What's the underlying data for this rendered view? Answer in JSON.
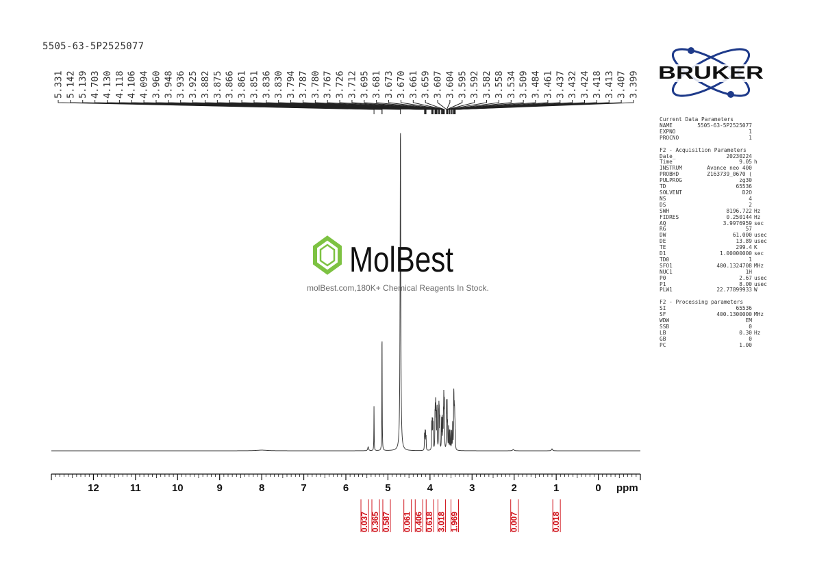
{
  "sample_name": "5505-63-5P2525077",
  "brand": "BRUKER",
  "watermark": {
    "brand": "MolBest",
    "tagline": "molBest.com,180K+ Chemical Reagents In Stock.",
    "brand_color": "#7dc242"
  },
  "colors": {
    "spectrum": "#333333",
    "integral": "#d0141c",
    "bruker_blue": "#1e3a8a"
  },
  "parameters": {
    "sections": [
      {
        "title": "Current Data Parameters",
        "rows": [
          {
            "k": "NAME",
            "v": "5505-63-5P2525077",
            "u": ""
          },
          {
            "k": "EXPNO",
            "v": "1",
            "u": ""
          },
          {
            "k": "PROCNO",
            "v": "1",
            "u": ""
          }
        ]
      },
      {
        "title": "F2 - Acquisition Parameters",
        "rows": [
          {
            "k": "Date_",
            "v": "20230224",
            "u": ""
          },
          {
            "k": "Time",
            "v": "9.05",
            "u": "h"
          },
          {
            "k": "INSTRUM",
            "v": "Avance neo 400",
            "u": ""
          },
          {
            "k": "PROBHD",
            "v": "Z163739_0670 (",
            "u": ""
          },
          {
            "k": "PULPROG",
            "v": "zg30",
            "u": ""
          },
          {
            "k": "TD",
            "v": "65536",
            "u": ""
          },
          {
            "k": "SOLVENT",
            "v": "D2O",
            "u": ""
          },
          {
            "k": "NS",
            "v": "4",
            "u": ""
          },
          {
            "k": "DS",
            "v": "2",
            "u": ""
          },
          {
            "k": "SWH",
            "v": "8196.722",
            "u": "Hz"
          },
          {
            "k": "FIDRES",
            "v": "0.250144",
            "u": "Hz"
          },
          {
            "k": "AQ",
            "v": "3.9976959",
            "u": "sec"
          },
          {
            "k": "RG",
            "v": "57",
            "u": ""
          },
          {
            "k": "DW",
            "v": "61.000",
            "u": "usec"
          },
          {
            "k": "DE",
            "v": "13.89",
            "u": "usec"
          },
          {
            "k": "TE",
            "v": "299.4",
            "u": "K"
          },
          {
            "k": "D1",
            "v": "1.00000000",
            "u": "sec"
          },
          {
            "k": "TD0",
            "v": "1",
            "u": ""
          },
          {
            "k": "SFO1",
            "v": "400.1324708",
            "u": "MHz"
          },
          {
            "k": "NUC1",
            "v": "1H",
            "u": ""
          },
          {
            "k": "P0",
            "v": "2.67",
            "u": "usec"
          },
          {
            "k": "P1",
            "v": "8.00",
            "u": "usec"
          },
          {
            "k": "PLW1",
            "v": "22.77899933",
            "u": "W"
          }
        ]
      },
      {
        "title": "F2 - Processing parameters",
        "rows": [
          {
            "k": "SI",
            "v": "65536",
            "u": ""
          },
          {
            "k": "SF",
            "v": "400.1300000",
            "u": "MHz"
          },
          {
            "k": "WDW",
            "v": "EM",
            "u": ""
          },
          {
            "k": "SSB",
            "v": "0",
            "u": ""
          },
          {
            "k": "LB",
            "v": "0.30",
            "u": "Hz"
          },
          {
            "k": "GB",
            "v": "0",
            "u": ""
          },
          {
            "k": "PC",
            "v": "1.00",
            "u": ""
          }
        ]
      }
    ]
  },
  "chart_data": {
    "type": "line",
    "title": "",
    "xlabel": "ppm",
    "ylabel": "",
    "xlim": [
      13.0,
      -1.0
    ],
    "x_reversed": true,
    "major_ticks": [
      "12",
      "11",
      "10",
      "9",
      "8",
      "7",
      "6",
      "5",
      "4",
      "3",
      "2",
      "1",
      "0"
    ],
    "grid": false,
    "peak_labels": [
      "5.331",
      "5.142",
      "5.139",
      "4.703",
      "4.130",
      "4.118",
      "4.106",
      "4.094",
      "3.960",
      "3.948",
      "3.936",
      "3.925",
      "3.882",
      "3.875",
      "3.866",
      "3.861",
      "3.851",
      "3.836",
      "3.830",
      "3.794",
      "3.787",
      "3.780",
      "3.767",
      "3.726",
      "3.712",
      "3.695",
      "3.681",
      "3.673",
      "3.670",
      "3.661",
      "3.659",
      "3.607",
      "3.604",
      "3.595",
      "3.592",
      "3.582",
      "3.558",
      "3.534",
      "3.509",
      "3.484",
      "3.461",
      "3.437",
      "3.432",
      "3.424",
      "3.418",
      "3.413",
      "3.407",
      "3.399"
    ],
    "peaks": [
      {
        "ppm": 5.47,
        "h": 0.012,
        "w": 0.012
      },
      {
        "ppm": 5.331,
        "h": 0.135,
        "w": 0.004
      },
      {
        "ppm": 5.142,
        "h": 0.215,
        "w": 0.004
      },
      {
        "ppm": 5.139,
        "h": 0.19,
        "w": 0.004
      },
      {
        "ppm": 4.703,
        "h": 0.98,
        "w": 0.009
      },
      {
        "ppm": 4.13,
        "h": 0.05,
        "w": 0.004
      },
      {
        "ppm": 4.118,
        "h": 0.055,
        "w": 0.004
      },
      {
        "ppm": 4.106,
        "h": 0.052,
        "w": 0.004
      },
      {
        "ppm": 4.094,
        "h": 0.045,
        "w": 0.004
      },
      {
        "ppm": 3.96,
        "h": 0.078,
        "w": 0.004
      },
      {
        "ppm": 3.948,
        "h": 0.085,
        "w": 0.004
      },
      {
        "ppm": 3.936,
        "h": 0.082,
        "w": 0.004
      },
      {
        "ppm": 3.925,
        "h": 0.075,
        "w": 0.004
      },
      {
        "ppm": 3.882,
        "h": 0.09,
        "w": 0.004
      },
      {
        "ppm": 3.875,
        "h": 0.095,
        "w": 0.004
      },
      {
        "ppm": 3.866,
        "h": 0.09,
        "w": 0.004
      },
      {
        "ppm": 3.861,
        "h": 0.092,
        "w": 0.004
      },
      {
        "ppm": 3.851,
        "h": 0.088,
        "w": 0.004
      },
      {
        "ppm": 3.836,
        "h": 0.094,
        "w": 0.004
      },
      {
        "ppm": 3.83,
        "h": 0.098,
        "w": 0.004
      },
      {
        "ppm": 3.794,
        "h": 0.096,
        "w": 0.004
      },
      {
        "ppm": 3.787,
        "h": 0.1,
        "w": 0.004
      },
      {
        "ppm": 3.78,
        "h": 0.094,
        "w": 0.004
      },
      {
        "ppm": 3.767,
        "h": 0.09,
        "w": 0.004
      },
      {
        "ppm": 3.726,
        "h": 0.092,
        "w": 0.004
      },
      {
        "ppm": 3.712,
        "h": 0.095,
        "w": 0.004
      },
      {
        "ppm": 3.695,
        "h": 0.088,
        "w": 0.004
      },
      {
        "ppm": 3.681,
        "h": 0.09,
        "w": 0.004
      },
      {
        "ppm": 3.673,
        "h": 0.085,
        "w": 0.004
      },
      {
        "ppm": 3.67,
        "h": 0.085,
        "w": 0.004
      },
      {
        "ppm": 3.661,
        "h": 0.08,
        "w": 0.004
      },
      {
        "ppm": 3.659,
        "h": 0.08,
        "w": 0.004
      },
      {
        "ppm": 3.607,
        "h": 0.078,
        "w": 0.004
      },
      {
        "ppm": 3.604,
        "h": 0.075,
        "w": 0.004
      },
      {
        "ppm": 3.595,
        "h": 0.08,
        "w": 0.004
      },
      {
        "ppm": 3.592,
        "h": 0.078,
        "w": 0.004
      },
      {
        "ppm": 3.582,
        "h": 0.07,
        "w": 0.004
      },
      {
        "ppm": 3.558,
        "h": 0.072,
        "w": 0.004
      },
      {
        "ppm": 3.534,
        "h": 0.065,
        "w": 0.004
      },
      {
        "ppm": 3.509,
        "h": 0.06,
        "w": 0.004
      },
      {
        "ppm": 3.484,
        "h": 0.055,
        "w": 0.004
      },
      {
        "ppm": 3.461,
        "h": 0.09,
        "w": 0.004
      },
      {
        "ppm": 3.437,
        "h": 0.12,
        "w": 0.004
      },
      {
        "ppm": 3.432,
        "h": 0.11,
        "w": 0.004
      },
      {
        "ppm": 3.424,
        "h": 0.085,
        "w": 0.004
      },
      {
        "ppm": 3.418,
        "h": 0.07,
        "w": 0.004
      },
      {
        "ppm": 3.413,
        "h": 0.06,
        "w": 0.004
      },
      {
        "ppm": 3.407,
        "h": 0.05,
        "w": 0.004
      },
      {
        "ppm": 3.399,
        "h": 0.04,
        "w": 0.004
      },
      {
        "ppm": 2.02,
        "h": 0.004,
        "w": 0.02
      },
      {
        "ppm": 1.1,
        "h": 0.006,
        "w": 0.015
      },
      {
        "ppm": 8.0,
        "h": 0.002,
        "w": 0.15
      }
    ],
    "integrals": [
      {
        "label": "0.037",
        "ppm": 5.56
      },
      {
        "label": "0.365",
        "ppm": 5.3
      },
      {
        "label": "0.587",
        "ppm": 5.04
      },
      {
        "label": "0.061",
        "ppm": 4.54
      },
      {
        "label": "0.406",
        "ppm": 4.27
      },
      {
        "label": "0.618",
        "ppm": 4.01
      },
      {
        "label": "3.018",
        "ppm": 3.73
      },
      {
        "label": "1.969",
        "ppm": 3.42
      },
      {
        "label": "0.007",
        "ppm": 2.0
      },
      {
        "label": "0.018",
        "ppm": 1.0
      }
    ]
  }
}
